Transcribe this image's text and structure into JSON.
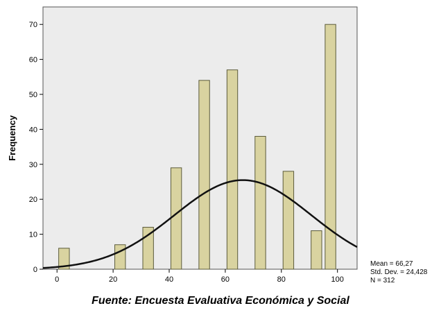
{
  "chart_data": {
    "type": "bar",
    "subtype": "histogram",
    "categories": [
      "0",
      "20",
      "30",
      "40",
      "50",
      "60",
      "70",
      "80",
      "90",
      "100"
    ],
    "x": [
      2.5,
      22.5,
      32.5,
      42.5,
      52.5,
      62.5,
      72.5,
      82.5,
      92.5,
      97.5
    ],
    "values": [
      6,
      7,
      12,
      29,
      54,
      57,
      38,
      28,
      11,
      70
    ],
    "ylabel": "Frequency",
    "xlabel": "",
    "xlim": [
      -5,
      107
    ],
    "ylim": [
      0,
      75
    ],
    "x_ticks": [
      0,
      20,
      40,
      60,
      80,
      100
    ],
    "y_ticks": [
      0,
      10,
      20,
      30,
      40,
      50,
      60,
      70
    ],
    "normal_curve": {
      "mean": 66.27,
      "std": 24.428,
      "n": 312,
      "bin_width": 5
    },
    "stats": {
      "mean": "Mean = 66,27",
      "std": "Std. Dev. = 24,428",
      "n": "N = 312"
    },
    "grid": false,
    "colors": {
      "bar_fill": "#d9d3a0",
      "bar_stroke": "#5a5a3a",
      "plot_bg": "#ececec",
      "curve": "#111111"
    }
  },
  "caption": "Fuente: Encuesta Evaluativa Económica y Social"
}
